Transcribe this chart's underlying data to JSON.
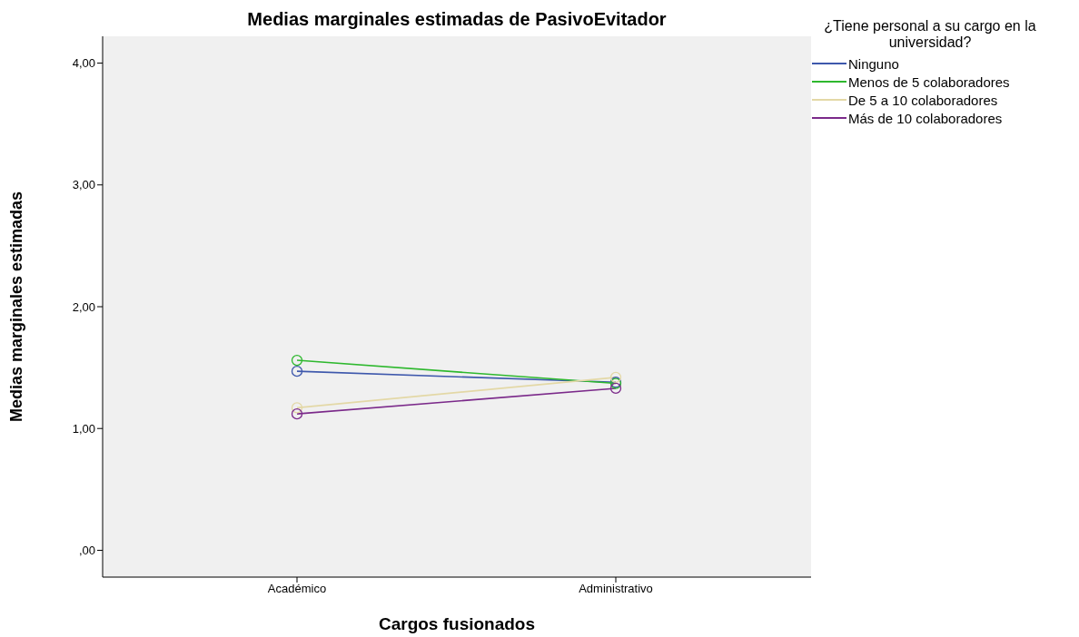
{
  "chart_data": {
    "type": "line",
    "title": "Medias marginales estimadas de PasivoEvitador",
    "xlabel": "Cargos fusionados",
    "ylabel": "Medias marginales estimadas",
    "legend_title": "¿Tiene personal a su cargo en la universidad?",
    "categories": [
      "Académico",
      "Administrativo"
    ],
    "series": [
      {
        "name": "Ninguno",
        "color": "#3e58ac",
        "values": [
          1.47,
          1.38
        ]
      },
      {
        "name": "Menos de 5 colaboradores",
        "color": "#2eb82e",
        "values": [
          1.56,
          1.37
        ]
      },
      {
        "name": "De 5 a 10 colaboradores",
        "color": "#e3d8a6",
        "values": [
          1.17,
          1.42
        ]
      },
      {
        "name": "Más de 10 colaboradores",
        "color": "#7b2a8a",
        "values": [
          1.12,
          1.33
        ]
      }
    ],
    "ylim": [
      -0.22,
      4.22
    ],
    "yticks": [
      {
        "value": 0,
        "label": ",00"
      },
      {
        "value": 1,
        "label": "1,00"
      },
      {
        "value": 2,
        "label": "2,00"
      },
      {
        "value": 3,
        "label": "3,00"
      },
      {
        "value": 4,
        "label": "4,00"
      }
    ],
    "legend": "right",
    "marker": "circle",
    "line_style": "solid"
  }
}
